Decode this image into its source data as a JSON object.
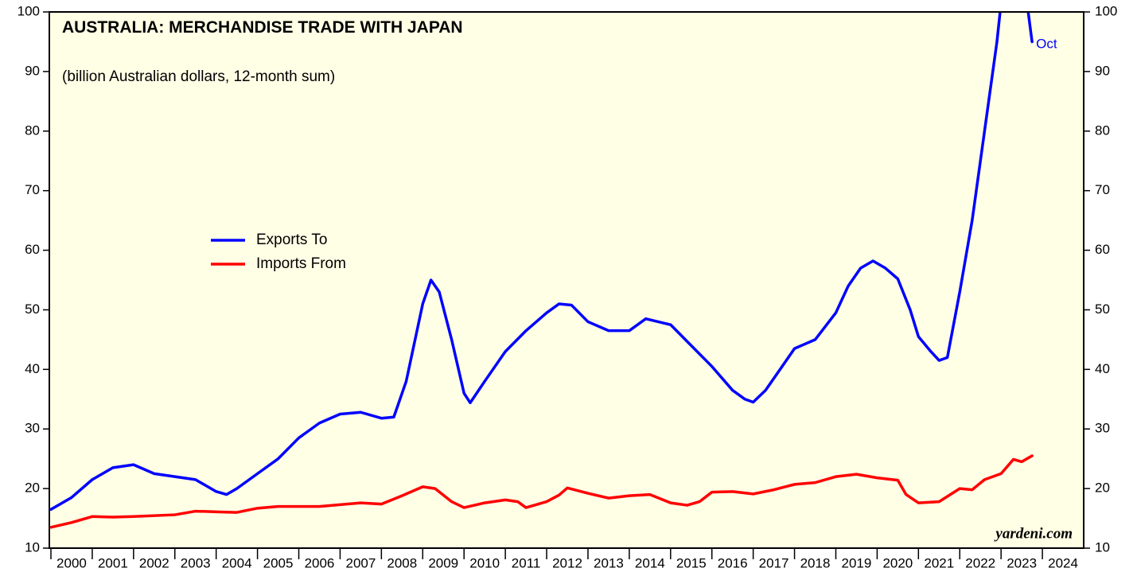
{
  "chart_data": {
    "type": "line",
    "title": "AUSTRALIA: MERCHANDISE TRADE WITH JAPAN",
    "subtitle": "(billion Australian dollars, 12-month sum)",
    "annotations": {
      "end_label": "Oct",
      "source": "yardeni.com"
    },
    "xlim": [
      2000,
      2025
    ],
    "xticks": [
      2000,
      2001,
      2002,
      2003,
      2004,
      2005,
      2006,
      2007,
      2008,
      2009,
      2010,
      2011,
      2012,
      2013,
      2014,
      2015,
      2016,
      2017,
      2018,
      2019,
      2020,
      2021,
      2022,
      2023,
      2024
    ],
    "ylim": [
      10,
      100
    ],
    "yticks": [
      10,
      20,
      30,
      40,
      50,
      60,
      70,
      80,
      90,
      100
    ],
    "y2lim": [
      10,
      100
    ],
    "y2ticks": [
      10,
      20,
      30,
      40,
      50,
      60,
      70,
      80,
      90,
      100
    ],
    "background": "#ffffe6",
    "series": [
      {
        "name": "Exports To",
        "color": "#0000ff",
        "x": [
          2000.0,
          2000.5,
          2001.0,
          2001.5,
          2002.0,
          2002.5,
          2003.0,
          2003.5,
          2004.0,
          2004.25,
          2004.5,
          2005.0,
          2005.5,
          2006.0,
          2006.5,
          2007.0,
          2007.5,
          2008.0,
          2008.3,
          2008.6,
          2009.0,
          2009.2,
          2009.4,
          2009.7,
          2010.0,
          2010.15,
          2010.5,
          2011.0,
          2011.5,
          2012.0,
          2012.3,
          2012.6,
          2013.0,
          2013.5,
          2014.0,
          2014.4,
          2014.7,
          2015.0,
          2015.5,
          2016.0,
          2016.5,
          2016.8,
          2017.0,
          2017.3,
          2017.7,
          2018.0,
          2018.5,
          2019.0,
          2019.3,
          2019.6,
          2019.9,
          2020.2,
          2020.5,
          2020.8,
          2021.0,
          2021.3,
          2021.5,
          2021.7,
          2022.0,
          2022.3,
          2022.6,
          2022.9,
          2023.1,
          2023.4,
          2023.6,
          2023.75
        ],
        "values": [
          16.5,
          18.5,
          21.5,
          23.5,
          24,
          22.5,
          22,
          21.5,
          19.5,
          19,
          20,
          22.5,
          25,
          28.5,
          31,
          32.5,
          32.8,
          31.8,
          32,
          38,
          51,
          55,
          53,
          45,
          36,
          34.4,
          38,
          43,
          46.5,
          49.5,
          51,
          50.8,
          48,
          46.5,
          46.5,
          48.5,
          48,
          47.5,
          44,
          40.5,
          36.5,
          35,
          34.5,
          36.5,
          40.5,
          43.5,
          45,
          49.5,
          54,
          57,
          58.2,
          57,
          55.2,
          50,
          45.5,
          43,
          41.5,
          42,
          53,
          65,
          80,
          95,
          108,
          112,
          103,
          95
        ]
      },
      {
        "name": "Imports From",
        "color": "#ff0000",
        "x": [
          2000.0,
          2000.5,
          2001.0,
          2001.5,
          2002.0,
          2003.0,
          2003.5,
          2004.0,
          2004.5,
          2005.0,
          2005.5,
          2006.0,
          2006.5,
          2007.0,
          2007.5,
          2008.0,
          2008.5,
          2009.0,
          2009.3,
          2009.7,
          2010.0,
          2010.5,
          2011.0,
          2011.3,
          2011.5,
          2012.0,
          2012.3,
          2012.5,
          2013.0,
          2013.5,
          2014.0,
          2014.5,
          2015.0,
          2015.4,
          2015.7,
          2016.0,
          2016.5,
          2017.0,
          2017.5,
          2018.0,
          2018.5,
          2019.0,
          2019.5,
          2020.0,
          2020.5,
          2020.7,
          2021.0,
          2021.5,
          2022.0,
          2022.3,
          2022.6,
          2023.0,
          2023.3,
          2023.5,
          2023.75
        ],
        "values": [
          13.5,
          14.3,
          15.3,
          15.2,
          15.3,
          15.6,
          16.2,
          16.1,
          16,
          16.7,
          17,
          17,
          17,
          17.3,
          17.6,
          17.4,
          18.8,
          20.3,
          20,
          17.8,
          16.8,
          17.6,
          18.1,
          17.8,
          16.8,
          17.8,
          18.9,
          20.1,
          19.2,
          18.4,
          18.8,
          19,
          17.6,
          17.2,
          17.8,
          19.4,
          19.5,
          19.1,
          19.8,
          20.7,
          21,
          22,
          22.4,
          21.8,
          21.4,
          19,
          17.6,
          17.8,
          20,
          19.8,
          21.5,
          22.5,
          24.9,
          24.5,
          25.5
        ]
      }
    ]
  }
}
